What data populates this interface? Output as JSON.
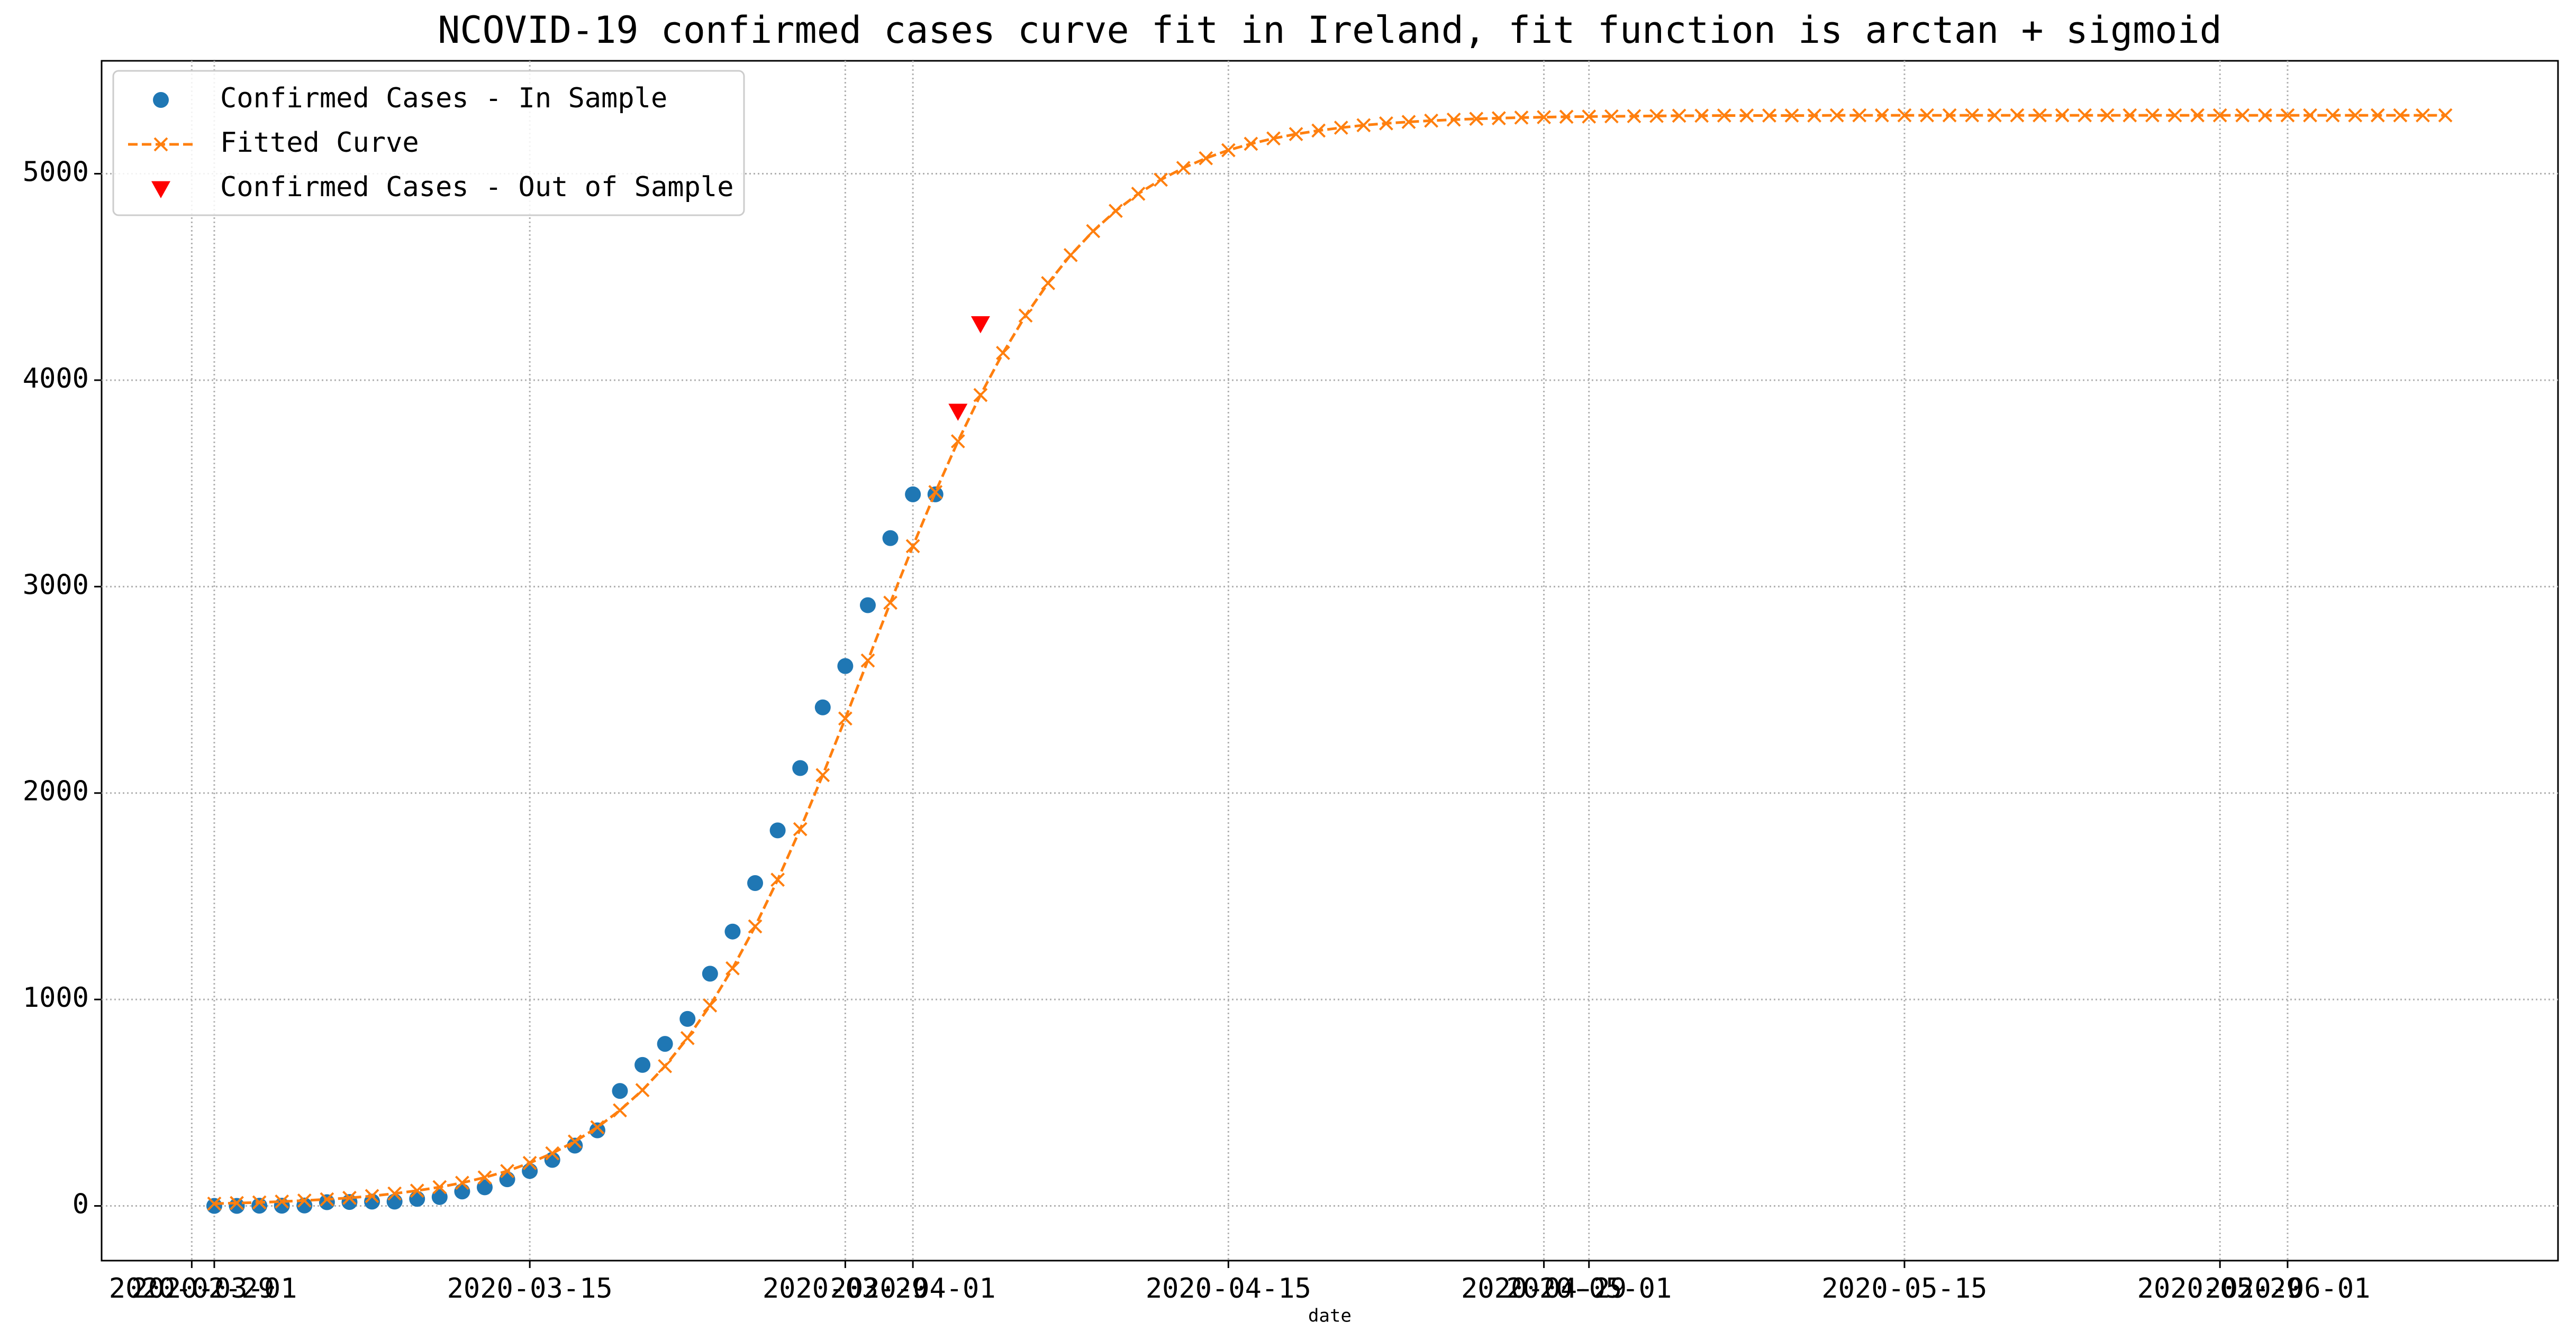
{
  "chart_data": {
    "type": "line",
    "title": "NCOVID-19 confirmed cases curve fit in Ireland, fit function is arctan + sigmoid",
    "xlabel": "date",
    "xlim": [
      "2020-02-25",
      "2020-06-13"
    ],
    "xticks": [
      "2020-02-29",
      "2020-03-01",
      "2020-03-15",
      "2020-03-29",
      "2020-04-01",
      "2020-04-15",
      "2020-04-29",
      "2020-05-01",
      "2020-05-15",
      "2020-05-29",
      "2020-06-01"
    ],
    "ylim": [
      -265,
      5547
    ],
    "yticks": [
      0,
      1000,
      2000,
      3000,
      4000,
      5000
    ],
    "grid": true,
    "legend": "upper left",
    "series": [
      {
        "name": "Confirmed Cases - In Sample",
        "color": "#1f77b4",
        "marker": "circle",
        "line": false,
        "x": [
          "2020-03-01",
          "2020-03-02",
          "2020-03-03",
          "2020-03-04",
          "2020-03-05",
          "2020-03-06",
          "2020-03-07",
          "2020-03-08",
          "2020-03-09",
          "2020-03-10",
          "2020-03-11",
          "2020-03-12",
          "2020-03-13",
          "2020-03-14",
          "2020-03-15",
          "2020-03-16",
          "2020-03-17",
          "2020-03-18",
          "2020-03-19",
          "2020-03-20",
          "2020-03-21",
          "2020-03-22",
          "2020-03-23",
          "2020-03-24",
          "2020-03-25",
          "2020-03-26",
          "2020-03-27",
          "2020-03-28",
          "2020-03-29",
          "2020-03-30",
          "2020-03-31",
          "2020-04-01",
          "2020-04-02"
        ],
        "values": [
          0,
          0,
          1,
          1,
          2,
          18,
          19,
          21,
          21,
          34,
          43,
          70,
          90,
          129,
          169,
          223,
          292,
          366,
          557,
          683,
          785,
          906,
          1125,
          1329,
          1564,
          1819,
          2121,
          2415,
          2615,
          2910,
          3235,
          3447,
          3447
        ]
      },
      {
        "name": "Fitted Curve",
        "color": "#ff7f0e",
        "marker": "x",
        "line": true,
        "x": [
          "2020-03-01",
          "2020-03-02",
          "2020-03-03",
          "2020-03-04",
          "2020-03-05",
          "2020-03-06",
          "2020-03-07",
          "2020-03-08",
          "2020-03-09",
          "2020-03-10",
          "2020-03-11",
          "2020-03-12",
          "2020-03-13",
          "2020-03-14",
          "2020-03-15",
          "2020-03-16",
          "2020-03-17",
          "2020-03-18",
          "2020-03-19",
          "2020-03-20",
          "2020-03-21",
          "2020-03-22",
          "2020-03-23",
          "2020-03-24",
          "2020-03-25",
          "2020-03-26",
          "2020-03-27",
          "2020-03-28",
          "2020-03-29",
          "2020-03-30",
          "2020-03-31",
          "2020-04-01",
          "2020-04-02",
          "2020-04-03",
          "2020-04-04",
          "2020-04-05",
          "2020-04-06",
          "2020-04-07",
          "2020-04-08",
          "2020-04-09",
          "2020-04-10",
          "2020-04-11",
          "2020-04-12",
          "2020-04-13",
          "2020-04-14",
          "2020-04-15",
          "2020-04-16",
          "2020-04-17",
          "2020-04-18",
          "2020-04-19",
          "2020-04-20",
          "2020-04-21",
          "2020-04-22",
          "2020-04-23",
          "2020-04-24",
          "2020-04-25",
          "2020-04-26",
          "2020-04-27",
          "2020-04-28",
          "2020-04-29",
          "2020-04-30",
          "2020-05-01",
          "2020-05-02",
          "2020-05-03",
          "2020-05-04",
          "2020-05-05",
          "2020-05-06",
          "2020-05-07",
          "2020-05-08",
          "2020-05-09",
          "2020-05-10",
          "2020-05-11",
          "2020-05-12",
          "2020-05-13",
          "2020-05-14",
          "2020-05-15",
          "2020-05-16",
          "2020-05-17",
          "2020-05-18",
          "2020-05-19",
          "2020-05-20",
          "2020-05-21",
          "2020-05-22",
          "2020-05-23",
          "2020-05-24",
          "2020-05-25",
          "2020-05-26",
          "2020-05-27",
          "2020-05-28",
          "2020-05-29",
          "2020-05-30",
          "2020-05-31",
          "2020-06-01",
          "2020-06-02",
          "2020-06-03",
          "2020-06-04",
          "2020-06-05",
          "2020-06-06",
          "2020-06-07",
          "2020-06-08"
        ],
        "values": [
          11,
          14,
          17,
          21,
          26,
          32,
          39,
          48,
          60,
          74,
          91,
          112,
          138,
          169,
          208,
          255,
          312,
          381,
          463,
          561,
          677,
          813,
          971,
          1151,
          1354,
          1580,
          1825,
          2087,
          2361,
          2642,
          2922,
          3196,
          3458,
          3704,
          3928,
          4132,
          4313,
          4470,
          4606,
          4722,
          4820,
          4903,
          4971,
          5028,
          5075,
          5114,
          5145,
          5171,
          5192,
          5209,
          5223,
          5235,
          5244,
          5251,
          5257,
          5262,
          5266,
          5269,
          5272,
          5274,
          5276,
          5277,
          5278,
          5279,
          5280,
          5281,
          5281,
          5282,
          5282,
          5282,
          5282,
          5282,
          5283,
          5283,
          5283,
          5283,
          5283,
          5283,
          5283,
          5283,
          5283,
          5283,
          5283,
          5283,
          5283,
          5283,
          5283,
          5283,
          5283,
          5283,
          5283,
          5283,
          5283,
          5283,
          5283,
          5283,
          5283,
          5283,
          5283,
          5283
        ]
      },
      {
        "name": "Confirmed Cases - Out of Sample",
        "color": "#ff0000",
        "marker": "triangle-down",
        "line": false,
        "x": [
          "2020-04-03",
          "2020-04-04"
        ],
        "values": [
          3849,
          4273
        ]
      }
    ]
  }
}
